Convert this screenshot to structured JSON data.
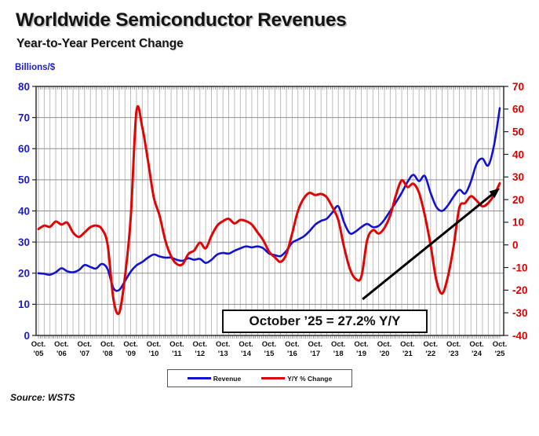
{
  "header": {
    "title": "Worldwide Semiconductor Revenues",
    "subtitle": "Year-to-Year Percent Change"
  },
  "chart_data": {
    "type": "line",
    "title": "Worldwide Semiconductor Revenues",
    "subtitle": "Year-to-Year Percent Change",
    "x_start": "Oct 2005",
    "x_end": "Oct 2025",
    "interval_months": 3,
    "x_tick_month": "Oct.",
    "x_tick_years": [
      "'05",
      "'06",
      "'07",
      "'08",
      "'09",
      "'10",
      "'11",
      "'12",
      "'13",
      "'14",
      "'15",
      "'16",
      "'17",
      "'18",
      "'19",
      "'20",
      "'21",
      "'22",
      "'23",
      "'24",
      "'25"
    ],
    "axis_left": {
      "label": "Billions/$",
      "range": [
        0,
        80
      ],
      "ticks": [
        0,
        10,
        20,
        30,
        40,
        50,
        60,
        70,
        80
      ],
      "color": "#1c1ccd"
    },
    "axis_right": {
      "label": "Y/Y % Change",
      "range": [
        -40,
        70
      ],
      "ticks": [
        -40,
        -30,
        -20,
        -10,
        0,
        10,
        20,
        30,
        40,
        50,
        60,
        70
      ],
      "color": "#d90000"
    },
    "grid": {
      "vertical": "quarterly",
      "horizontal_every": 10,
      "minor_ticks": "monthly"
    },
    "series": [
      {
        "name": "Revenue",
        "axis": "left",
        "color": "#1212d0",
        "values": [
          20.0,
          19.8,
          19.5,
          20.3,
          21.6,
          20.6,
          20.3,
          21.0,
          22.6,
          22.0,
          21.5,
          23.0,
          21.3,
          15.2,
          14.6,
          17.5,
          20.5,
          22.5,
          23.6,
          25.0,
          26.0,
          25.4,
          25.0,
          25.0,
          24.3,
          24.0,
          24.8,
          24.3,
          24.6,
          23.3,
          24.3,
          26.0,
          26.5,
          26.3,
          27.2,
          28.0,
          28.6,
          28.3,
          28.6,
          28.0,
          26.3,
          25.8,
          25.5,
          27.2,
          29.8,
          30.8,
          31.8,
          33.5,
          35.6,
          36.8,
          37.5,
          39.6,
          41.5,
          36.3,
          32.8,
          33.4,
          34.8,
          35.8,
          34.8,
          35.2,
          37.2,
          40.0,
          42.8,
          45.8,
          49.3,
          51.6,
          49.6,
          51.2,
          45.8,
          41.3,
          40.0,
          41.8,
          44.6,
          46.8,
          45.6,
          49.5,
          55.2,
          56.8,
          54.6,
          61.0,
          73.0
        ]
      },
      {
        "name": "Y/Y % Change",
        "axis": "right",
        "color": "#e00505",
        "values": [
          7.0,
          8.5,
          8.0,
          10.3,
          9.0,
          9.8,
          5.5,
          3.5,
          5.5,
          7.8,
          8.5,
          7.0,
          0.0,
          -24.0,
          -30.0,
          -14.0,
          12.0,
          59.0,
          52.0,
          37.0,
          21.0,
          13.0,
          2.0,
          -5.0,
          -8.5,
          -8.5,
          -4.0,
          -2.5,
          1.0,
          -1.5,
          4.0,
          8.5,
          10.5,
          11.5,
          9.5,
          11.0,
          10.5,
          9.0,
          5.5,
          2.0,
          -3.0,
          -5.5,
          -7.5,
          -4.0,
          5.0,
          15.0,
          20.5,
          23.0,
          22.0,
          22.5,
          21.0,
          16.5,
          11.0,
          -1.0,
          -10.5,
          -15.0,
          -14.0,
          2.0,
          6.5,
          5.0,
          7.5,
          13.0,
          22.0,
          28.5,
          25.5,
          27.0,
          23.0,
          13.0,
          0.0,
          -15.5,
          -21.5,
          -14.0,
          -0.5,
          16.5,
          18.5,
          21.5,
          19.5,
          17.0,
          18.5,
          22.0,
          27.2
        ]
      }
    ],
    "annotation": {
      "text": "October ’25 = 27.2% Y/Y",
      "arrow": {
        "t1": 56.2,
        "v1": -24,
        "t2": 80.0,
        "v2": 25
      }
    }
  },
  "legend": {
    "items": [
      {
        "label": "Revenue",
        "color": "#1212d0"
      },
      {
        "label": "Y/Y % Change",
        "color": "#e00505"
      }
    ]
  },
  "footer": {
    "source": "Source: WSTS"
  }
}
